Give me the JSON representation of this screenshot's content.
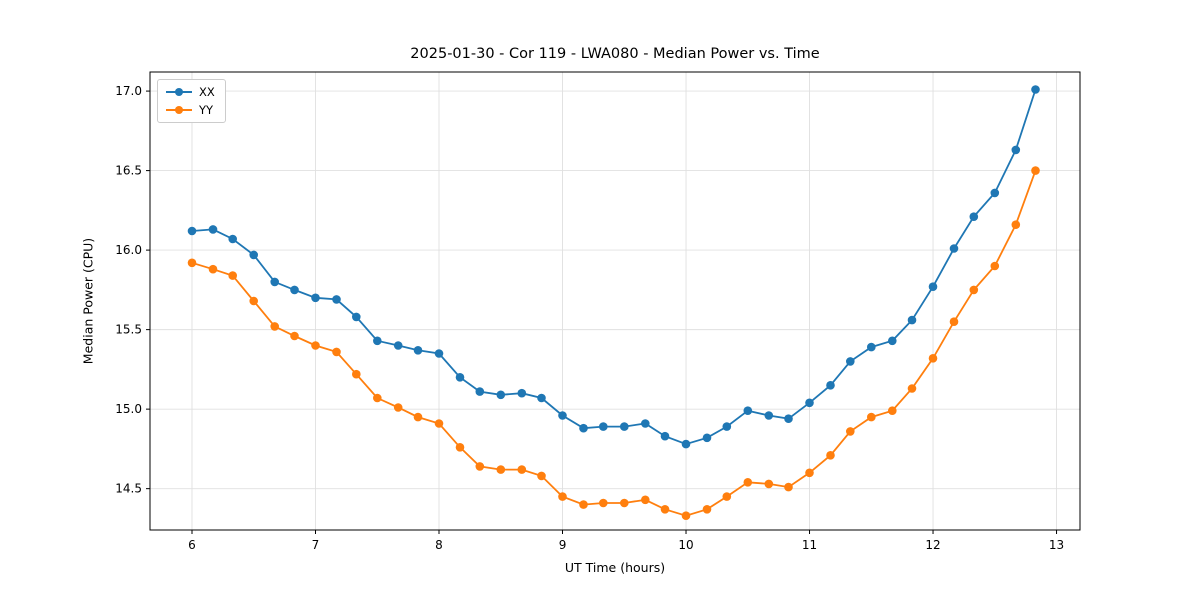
{
  "chart_data": {
    "type": "line",
    "title": "2025-01-30 - Cor 119 - LWA080 - Median Power vs. Time",
    "xlabel": "UT Time (hours)",
    "ylabel": "Median Power (CPU)",
    "xlim": [
      5.66,
      13.19
    ],
    "ylim": [
      14.24,
      17.12
    ],
    "xticks": [
      6,
      7,
      8,
      9,
      10,
      11,
      12,
      13
    ],
    "xtick_labels": [
      "6",
      "7",
      "8",
      "9",
      "10",
      "11",
      "12",
      "13"
    ],
    "yticks": [
      14.5,
      15.0,
      15.5,
      16.0,
      16.5,
      17.0
    ],
    "ytick_labels": [
      "14.5",
      "15.0",
      "15.5",
      "16.0",
      "16.5",
      "17.0"
    ],
    "grid": true,
    "legend_position": "upper left",
    "x": [
      6.0,
      6.17,
      6.33,
      6.5,
      6.67,
      6.83,
      7.0,
      7.17,
      7.33,
      7.5,
      7.67,
      7.83,
      8.0,
      8.17,
      8.33,
      8.5,
      8.67,
      8.83,
      9.0,
      9.17,
      9.33,
      9.5,
      9.67,
      9.83,
      10.0,
      10.17,
      10.33,
      10.5,
      10.67,
      10.83,
      11.0,
      11.17,
      11.33,
      11.5,
      11.67,
      11.83,
      12.0,
      12.17,
      12.33,
      12.5,
      12.67,
      12.83
    ],
    "series": [
      {
        "name": "XX",
        "color": "#1f77b4",
        "values": [
          16.12,
          16.13,
          16.07,
          15.97,
          15.8,
          15.75,
          15.7,
          15.69,
          15.58,
          15.43,
          15.4,
          15.37,
          15.35,
          15.2,
          15.11,
          15.09,
          15.1,
          15.07,
          14.96,
          14.88,
          14.89,
          14.89,
          14.91,
          14.83,
          14.78,
          14.82,
          14.89,
          14.99,
          14.96,
          14.94,
          15.04,
          15.15,
          15.3,
          15.39,
          15.43,
          15.56,
          15.77,
          16.01,
          16.21,
          16.36,
          16.63,
          17.01
        ]
      },
      {
        "name": "YY",
        "color": "#ff7f0e",
        "values": [
          15.92,
          15.88,
          15.84,
          15.68,
          15.52,
          15.46,
          15.4,
          15.36,
          15.22,
          15.07,
          15.01,
          14.95,
          14.91,
          14.76,
          14.64,
          14.62,
          14.62,
          14.58,
          14.45,
          14.4,
          14.41,
          14.41,
          14.43,
          14.37,
          14.33,
          14.37,
          14.45,
          14.54,
          14.53,
          14.51,
          14.6,
          14.71,
          14.86,
          14.95,
          14.99,
          15.13,
          15.32,
          15.55,
          15.75,
          15.9,
          16.16,
          16.5
        ]
      }
    ]
  },
  "style": {
    "grid_color": "#e0e0e0",
    "frame_color": "#000000",
    "tick_color": "#000000"
  }
}
